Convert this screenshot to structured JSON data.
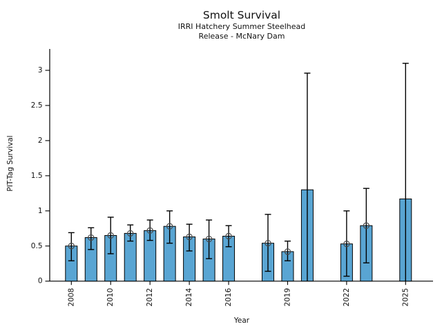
{
  "chart": {
    "title": "Smolt Survival",
    "subtitle1": "IRRI Hatchery Summer Steelhead",
    "subtitle2": "Release - McNary Dam",
    "xlabel": "Year",
    "ylabel": "PIT-Tag Survival"
  },
  "chart_data": {
    "type": "bar",
    "title": "Smolt Survival",
    "subtitle": [
      "IRRI Hatchery Summer Steelhead",
      "Release - McNary Dam"
    ],
    "xlabel": "Year",
    "ylabel": "PIT-Tag Survival",
    "ylim": [
      0,
      3.3
    ],
    "yticks": [
      0,
      0.5,
      1,
      1.5,
      2,
      2.5,
      3
    ],
    "xticks": [
      2008,
      2010,
      2012,
      2014,
      2016,
      2019,
      2022,
      2025
    ],
    "grid": false,
    "legend": "none",
    "bar_color": "#59a5d3",
    "bar_edge_color": "#000000",
    "error_color": "#000000",
    "marker_color": "#4a4a4a",
    "points": [
      {
        "year": 2008,
        "value": 0.5,
        "err_low": 0.29,
        "err_high": 0.69,
        "marker": true,
        "cap_low": true
      },
      {
        "year": 2009,
        "value": 0.62,
        "err_low": 0.45,
        "err_high": 0.76,
        "marker": true,
        "cap_low": true
      },
      {
        "year": 2010,
        "value": 0.65,
        "err_low": 0.39,
        "err_high": 0.91,
        "marker": true,
        "cap_low": true
      },
      {
        "year": 2011,
        "value": 0.68,
        "err_low": 0.57,
        "err_high": 0.8,
        "marker": true,
        "cap_low": true
      },
      {
        "year": 2012,
        "value": 0.72,
        "err_low": 0.58,
        "err_high": 0.87,
        "marker": true,
        "cap_low": true
      },
      {
        "year": 2013,
        "value": 0.78,
        "err_low": 0.54,
        "err_high": 1.0,
        "marker": true,
        "cap_low": true
      },
      {
        "year": 2014,
        "value": 0.63,
        "err_low": 0.43,
        "err_high": 0.81,
        "marker": true,
        "cap_low": true
      },
      {
        "year": 2015,
        "value": 0.6,
        "err_low": 0.32,
        "err_high": 0.87,
        "marker": true,
        "cap_low": true
      },
      {
        "year": 2016,
        "value": 0.64,
        "err_low": 0.49,
        "err_high": 0.79,
        "marker": true,
        "cap_low": true
      },
      {
        "year": 2018,
        "value": 0.54,
        "err_low": 0.14,
        "err_high": 0.95,
        "marker": true,
        "cap_low": true
      },
      {
        "year": 2019,
        "value": 0.42,
        "err_low": 0.29,
        "err_high": 0.57,
        "marker": true,
        "cap_low": true
      },
      {
        "year": 2020,
        "value": 1.3,
        "err_low": 0.0,
        "err_high": 2.96,
        "marker": false,
        "cap_low": false
      },
      {
        "year": 2022,
        "value": 0.53,
        "err_low": 0.07,
        "err_high": 1.0,
        "marker": true,
        "cap_low": true
      },
      {
        "year": 2023,
        "value": 0.79,
        "err_low": 0.26,
        "err_high": 1.32,
        "marker": true,
        "cap_low": true
      },
      {
        "year": 2025,
        "value": 1.17,
        "err_low": 0.0,
        "err_high": 3.1,
        "marker": false,
        "cap_low": false
      }
    ]
  }
}
